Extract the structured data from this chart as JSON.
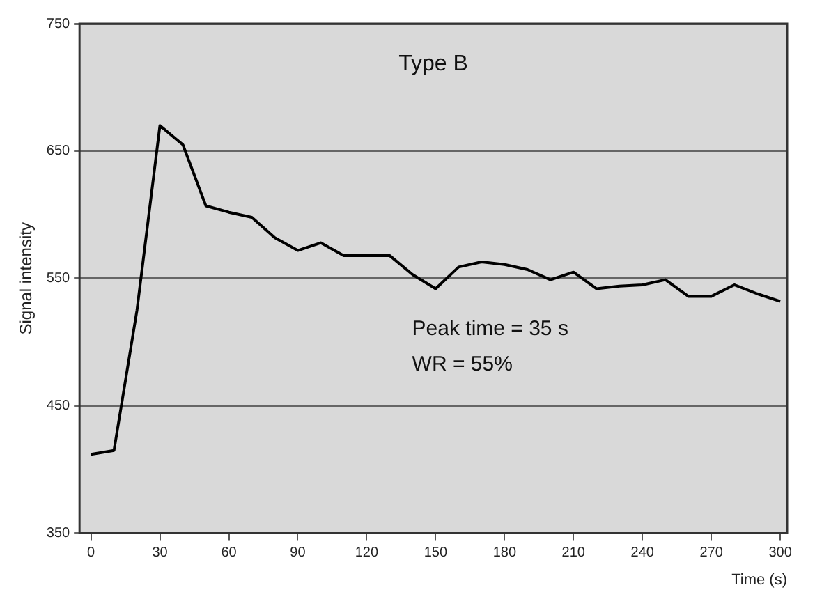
{
  "chart_data": {
    "type": "line",
    "xlabel": "Time (s)",
    "ylabel": "Signal intensity",
    "x": [
      0,
      10,
      20,
      30,
      40,
      50,
      60,
      70,
      80,
      90,
      100,
      110,
      120,
      130,
      140,
      150,
      160,
      170,
      180,
      190,
      200,
      210,
      220,
      230,
      240,
      250,
      260,
      270,
      280,
      290,
      300
    ],
    "series": [
      {
        "color": "#000000",
        "values": [
          412,
          415,
          525,
          670,
          655,
          607,
          602,
          598,
          582,
          572,
          578,
          568,
          568,
          568,
          553,
          542,
          559,
          563,
          561,
          557,
          549,
          555,
          542,
          544,
          545,
          549,
          536,
          536,
          545,
          538,
          532
        ]
      }
    ],
    "xlim": [
      -5,
      303
    ],
    "xticks": [
      0,
      30,
      60,
      90,
      120,
      150,
      180,
      210,
      240,
      270,
      300
    ],
    "ylim": [
      350,
      750
    ],
    "yticks": [
      350,
      450,
      550,
      650,
      750
    ],
    "grid": "y",
    "legend": false,
    "marker": "none",
    "line_style": "solid",
    "annotations": [
      "Type B",
      "Peak time = 35 s",
      "WR = 55%"
    ]
  }
}
